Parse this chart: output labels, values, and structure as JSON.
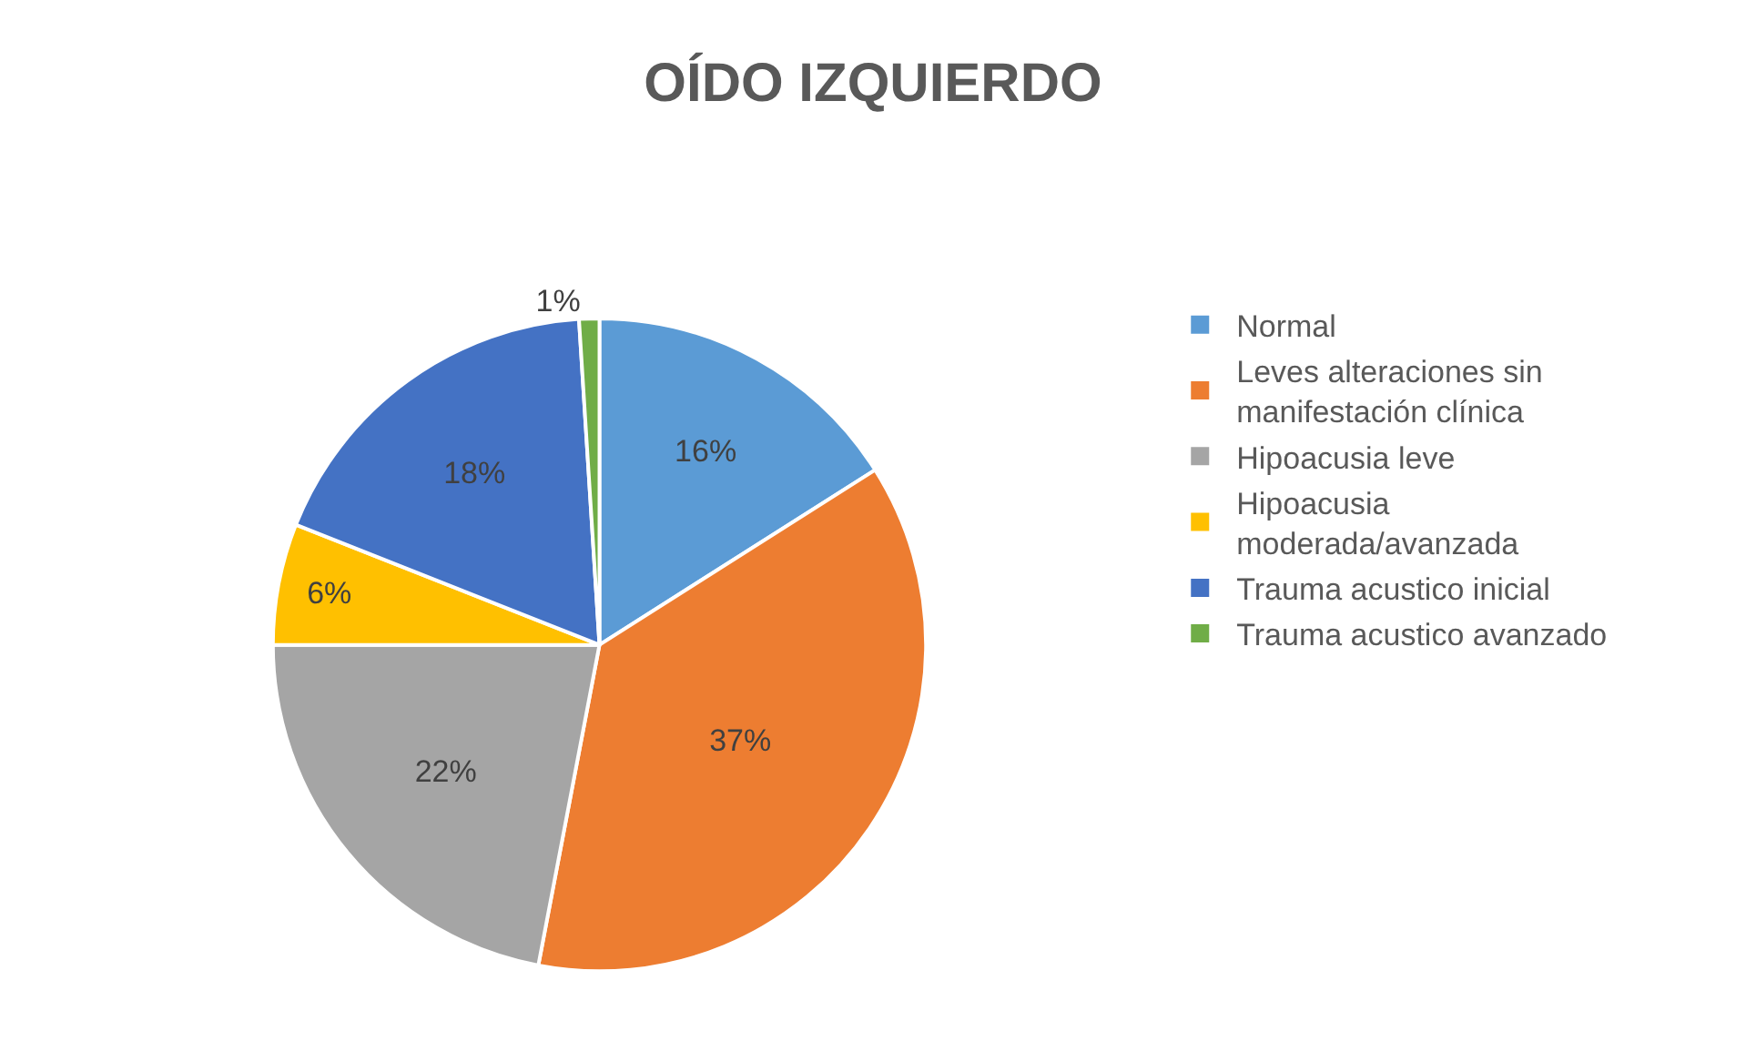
{
  "chart_data": {
    "type": "pie",
    "title": "OÍDO IZQUIERDO",
    "categories": [
      "Normal",
      "Leves alteraciones sin manifestación clínica",
      "Hipoacusia leve",
      "Hipoacusia moderada/avanzada",
      "Trauma acustico inicial",
      "Trauma acustico avanzado"
    ],
    "values": [
      16,
      37,
      22,
      6,
      18,
      1
    ],
    "value_labels": [
      "16%",
      "37%",
      "22%",
      "6%",
      "18%",
      "1%"
    ],
    "colors": [
      "#5b9bd5",
      "#ed7d31",
      "#a5a5a5",
      "#ffc000",
      "#4472c4",
      "#70ad47"
    ],
    "legend": "right"
  }
}
